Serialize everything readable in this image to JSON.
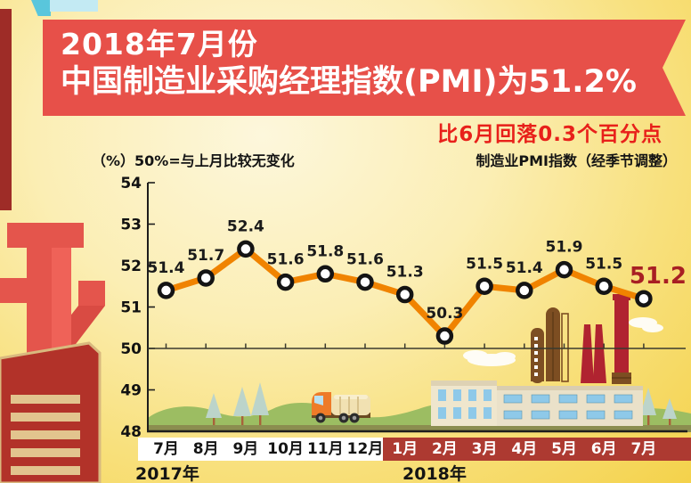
{
  "banner": {
    "line1": "2018年7月份",
    "line2": "中国制造业采购经理指数(PMI)为51.2%"
  },
  "subtitle": "比6月回落0.3个百分点",
  "notes": {
    "left": "（%）50%=与上月比较无变化",
    "right": "制造业PMI指数（经季节调整）"
  },
  "colors": {
    "banner_red": "#e75049",
    "dark_ribbon_red": "#9e2c27",
    "subtitle_red": "#e8201a",
    "line_orange": "#f08300",
    "final_value_red": "#a81f23",
    "month_band_red": "#ad3a31",
    "month_band_white": "#ffffff"
  },
  "chart_data": {
    "type": "line",
    "title": "2018年7月份 中国制造业采购经理指数(PMI)为51.2%",
    "subtitle": "比6月回落0.3个百分点",
    "ylabel": "（%）50%=与上月比较无变化",
    "legend": "制造业PMI指数（经季节调整）",
    "categories": [
      "7月",
      "8月",
      "9月",
      "10月",
      "11月",
      "12月",
      "1月",
      "2月",
      "3月",
      "4月",
      "5月",
      "6月",
      "7月"
    ],
    "series": [
      {
        "name": "制造业PMI指数（经季节调整）",
        "values": [
          51.4,
          51.7,
          52.4,
          51.6,
          51.8,
          51.6,
          51.3,
          50.3,
          51.5,
          51.4,
          51.9,
          51.5,
          51.2
        ]
      }
    ],
    "y_ticks": [
      54,
      53,
      52,
      51,
      50,
      49,
      48
    ],
    "ylim": [
      48,
      54
    ],
    "reference_line": 50,
    "highlight_last_value": "51.2",
    "year_groups": [
      {
        "label": "2017年",
        "months": 6
      },
      {
        "label": "2018年",
        "months": 7
      }
    ]
  }
}
